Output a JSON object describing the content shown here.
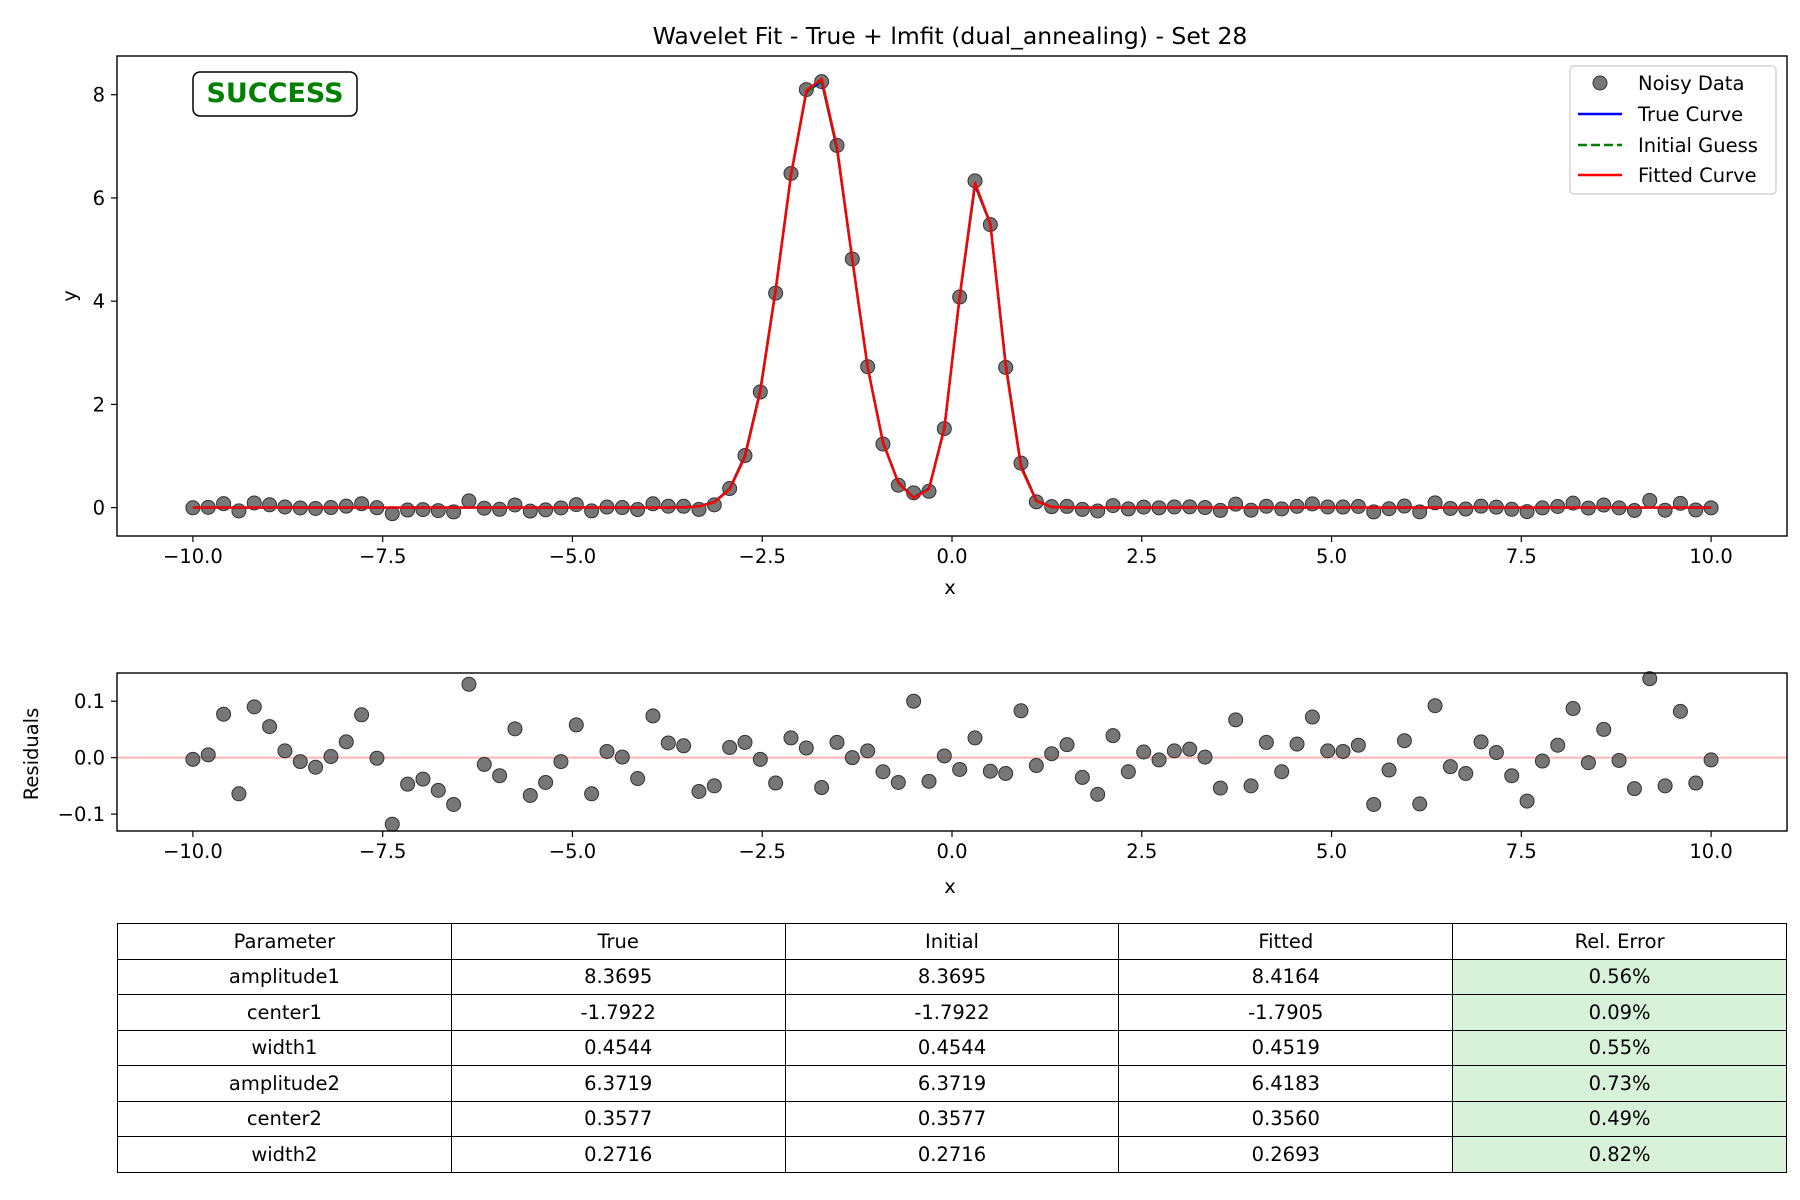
{
  "chart_data": [
    {
      "type": "line",
      "title": "Wavelet Fit - True + lmfit (dual_annealing) - Set 28",
      "xlabel": "x",
      "ylabel": "y",
      "xlim": [
        -11.0,
        11.0
      ],
      "ylim": [
        -0.55,
        8.75
      ],
      "xticks": [
        -10.0,
        -7.5,
        -5.0,
        -2.5,
        0.0,
        2.5,
        5.0,
        7.5,
        10.0
      ],
      "xtick_labels": [
        "−10.0",
        "−7.5",
        "−5.0",
        "−2.5",
        "0.0",
        "2.5",
        "5.0",
        "7.5",
        "10.0"
      ],
      "yticks": [
        0,
        2,
        4,
        6,
        8
      ],
      "ytick_labels": [
        "0",
        "2",
        "4",
        "6",
        "8"
      ],
      "grid": false,
      "legend_position": "top-right",
      "badge": {
        "text": "SUCCESS",
        "color": "#008000"
      },
      "model": {
        "form": "sum of two gaussian peaks",
        "peaks": [
          {
            "amplitude": 8.4164,
            "center": -1.7905,
            "width": 0.4519
          },
          {
            "amplitude": 6.4183,
            "center": 0.356,
            "width": 0.2693
          }
        ]
      },
      "sample_x": {
        "start": -10.0,
        "stop": 10.0,
        "count": 100
      },
      "series": [
        {
          "name": "Noisy Data",
          "style": "markers",
          "color": "#555555",
          "residuals": [
            -0.003,
            0.005,
            0.077,
            -0.064,
            0.09,
            0.055,
            0.012,
            -0.007,
            -0.017,
            0.002,
            0.028,
            0.076,
            -0.001,
            -0.118,
            -0.047,
            -0.038,
            -0.058,
            -0.083,
            0.13,
            -0.012,
            -0.032,
            0.051,
            -0.067,
            -0.044,
            -0.007,
            0.058,
            -0.064,
            0.011,
            0.001,
            -0.037,
            0.074,
            0.026,
            0.021,
            -0.06,
            -0.05,
            0.018,
            0.027,
            -0.003,
            -0.045,
            0.035,
            0.017,
            -0.053,
            0.027,
            0.0,
            0.012,
            -0.025,
            -0.044,
            0.1,
            -0.042,
            0.003,
            -0.021,
            0.035,
            -0.024,
            -0.028,
            0.083,
            -0.014,
            0.007,
            0.023,
            -0.035,
            -0.065,
            0.039,
            -0.025,
            0.01,
            -0.004,
            0.012,
            0.015,
            0.001,
            -0.054,
            0.067,
            -0.05,
            0.027,
            -0.025,
            0.024,
            0.072,
            0.012,
            0.011,
            0.022,
            -0.083,
            -0.022,
            0.03,
            -0.082,
            0.092,
            -0.016,
            -0.028,
            0.028,
            0.009,
            -0.032,
            -0.077,
            -0.006,
            0.022,
            0.087,
            -0.009,
            0.05,
            -0.005,
            -0.055,
            0.14,
            -0.05,
            0.082,
            -0.045,
            -0.004
          ]
        },
        {
          "name": "True Curve",
          "style": "solid",
          "color": "#0000ff",
          "peaks": [
            {
              "amplitude": 8.3695,
              "center": -1.7922,
              "width": 0.4544
            },
            {
              "amplitude": 6.3719,
              "center": 0.3577,
              "width": 0.2716
            }
          ]
        },
        {
          "name": "Initial Guess",
          "style": "dashed",
          "color": "#008000",
          "peaks": [
            {
              "amplitude": 8.3695,
              "center": -1.7922,
              "width": 0.4544
            },
            {
              "amplitude": 6.3719,
              "center": 0.3577,
              "width": 0.2716
            }
          ]
        },
        {
          "name": "Fitted Curve",
          "style": "solid",
          "color": "#ff0000",
          "peaks": [
            {
              "amplitude": 8.4164,
              "center": -1.7905,
              "width": 0.4519
            },
            {
              "amplitude": 6.4183,
              "center": 0.356,
              "width": 0.2693
            }
          ]
        }
      ]
    },
    {
      "type": "scatter",
      "title": "",
      "xlabel": "x",
      "ylabel": "Residuals",
      "xlim": [
        -11.0,
        11.0
      ],
      "ylim": [
        -0.13,
        0.15
      ],
      "xticks": [
        -10.0,
        -7.5,
        -5.0,
        -2.5,
        0.0,
        2.5,
        5.0,
        7.5,
        10.0
      ],
      "xtick_labels": [
        "−10.0",
        "−7.5",
        "−5.0",
        "−2.5",
        "0.0",
        "2.5",
        "5.0",
        "7.5",
        "10.0"
      ],
      "yticks": [
        -0.1,
        0.0,
        0.1
      ],
      "ytick_labels": [
        "−0.1",
        "0.0",
        "0.1"
      ],
      "zero_line_color": "#ffb3b3",
      "marker_color": "#555555"
    },
    {
      "type": "table",
      "columns": [
        "Parameter",
        "True",
        "Initial",
        "Fitted",
        "Rel. Error"
      ],
      "rows": [
        [
          "amplitude1",
          "8.3695",
          "8.3695",
          "8.4164",
          "0.56%"
        ],
        [
          "center1",
          "-1.7922",
          "-1.7922",
          "-1.7905",
          "0.09%"
        ],
        [
          "width1",
          "0.4544",
          "0.4544",
          "0.4519",
          "0.55%"
        ],
        [
          "amplitude2",
          "6.3719",
          "6.3719",
          "6.4183",
          "0.73%"
        ],
        [
          "center2",
          "0.3577",
          "0.3577",
          "0.3560",
          "0.49%"
        ],
        [
          "width2",
          "0.2716",
          "0.2716",
          "0.2693",
          "0.82%"
        ]
      ],
      "highlight_color": "#d7f2d9"
    }
  ]
}
